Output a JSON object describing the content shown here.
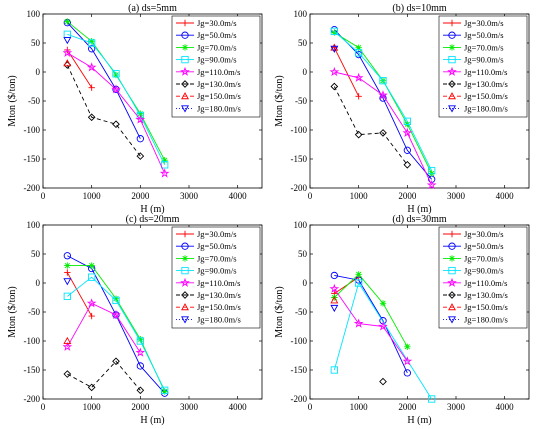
{
  "chart_data": [
    {
      "type": "line",
      "title": "(a) ds=5mm",
      "xlabel": "H (m)",
      "ylabel": "Mton ($/ton)",
      "xlim": [
        0,
        4500
      ],
      "ylim": [
        -200,
        100
      ],
      "xticks": [
        "0",
        "1000",
        "2000",
        "3000",
        "4000"
      ],
      "yticks": [
        "100",
        "50",
        "0",
        "-50",
        "-100",
        "-150",
        "-200"
      ],
      "legend_position": "top-right",
      "series": [
        {
          "name": "Jg=30.0m/s",
          "x": [
            500,
            1000
          ],
          "y": [
            38,
            -27
          ]
        },
        {
          "name": "Jg=50.0m/s",
          "x": [
            500,
            1000,
            1500,
            2000
          ],
          "y": [
            85,
            40,
            -30,
            -115
          ]
        },
        {
          "name": "Jg=70.0m/s",
          "x": [
            500,
            1000,
            1500,
            2000,
            2500
          ],
          "y": [
            87,
            53,
            -5,
            -72,
            -152
          ]
        },
        {
          "name": "Jg=90.0m/s",
          "x": [
            500,
            1000,
            1500,
            2000,
            2500
          ],
          "y": [
            65,
            50,
            -3,
            -75,
            -160
          ]
        },
        {
          "name": "Jg=110.0m/s",
          "x": [
            500,
            1000,
            1500,
            2000,
            2500
          ],
          "y": [
            33,
            8,
            -30,
            -82,
            -175
          ]
        },
        {
          "name": "Jg=130.0m/s",
          "x": [
            500,
            1000,
            1500,
            2000
          ],
          "y": [
            12,
            -78,
            -90,
            -145
          ]
        },
        {
          "name": "Jg=150.0m/s",
          "x": [
            500
          ],
          "y": [
            15
          ]
        },
        {
          "name": "Jg=180.0m/s",
          "x": [
            500
          ],
          "y": [
            55
          ]
        }
      ]
    },
    {
      "type": "line",
      "title": "(b) ds=10mm",
      "xlabel": "H (m)",
      "ylabel": "Mton ($/ton)",
      "xlim": [
        0,
        4500
      ],
      "ylim": [
        -200,
        100
      ],
      "xticks": [
        "0",
        "1000",
        "2000",
        "3000",
        "4000"
      ],
      "yticks": [
        "100",
        "50",
        "0",
        "-50",
        "-100",
        "-150",
        "-200"
      ],
      "legend_position": "top-right",
      "series": [
        {
          "name": "Jg=30.0m/s",
          "x": [
            500,
            1000
          ],
          "y": [
            42,
            -42
          ]
        },
        {
          "name": "Jg=50.0m/s",
          "x": [
            500,
            1000,
            1500,
            2000,
            2500
          ],
          "y": [
            73,
            30,
            -45,
            -135,
            -185
          ]
        },
        {
          "name": "Jg=70.0m/s",
          "x": [
            500,
            1000,
            1500,
            2000,
            2500
          ],
          "y": [
            68,
            42,
            -15,
            -90,
            -175
          ]
        },
        {
          "name": "Jg=90.0m/s",
          "x": [
            500,
            1000,
            1500,
            2000,
            2500
          ],
          "y": [
            70,
            33,
            -15,
            -85,
            -170
          ]
        },
        {
          "name": "Jg=110.0m/s",
          "x": [
            500,
            1000,
            1500,
            2000,
            2500
          ],
          "y": [
            0,
            -10,
            -40,
            -105,
            -195
          ]
        },
        {
          "name": "Jg=130.0m/s",
          "x": [
            500,
            1000,
            1500,
            2000
          ],
          "y": [
            -25,
            -108,
            -105,
            -160
          ]
        },
        {
          "name": "Jg=150.0m/s",
          "x": [
            500
          ],
          "y": [
            42
          ]
        },
        {
          "name": "Jg=180.0m/s",
          "x": [
            500
          ],
          "y": [
            40
          ]
        }
      ]
    },
    {
      "type": "line",
      "title": "(c) ds=20mm",
      "xlabel": "H (m)",
      "ylabel": "Mton ($/ton)",
      "xlim": [
        0,
        4500
      ],
      "ylim": [
        -200,
        100
      ],
      "xticks": [
        "0",
        "1000",
        "2000",
        "3000",
        "4000"
      ],
      "yticks": [
        "100",
        "50",
        "0",
        "-50",
        "-100",
        "-150",
        "-200"
      ],
      "legend_position": "top-right",
      "series": [
        {
          "name": "Jg=30.0m/s",
          "x": [
            500,
            1000
          ],
          "y": [
            18,
            -57
          ]
        },
        {
          "name": "Jg=50.0m/s",
          "x": [
            500,
            1000,
            1500,
            2000,
            2500
          ],
          "y": [
            47,
            25,
            -55,
            -143,
            -190
          ]
        },
        {
          "name": "Jg=70.0m/s",
          "x": [
            500,
            1000,
            1500,
            2000,
            2500
          ],
          "y": [
            30,
            30,
            -27,
            -97,
            -187
          ]
        },
        {
          "name": "Jg=90.0m/s",
          "x": [
            500,
            1000,
            1500,
            2000,
            2500
          ],
          "y": [
            -23,
            10,
            -30,
            -100,
            -185
          ]
        },
        {
          "name": "Jg=110.0m/s",
          "x": [
            500,
            1000,
            1500,
            2000
          ],
          "y": [
            -110,
            -35,
            -55,
            -120
          ]
        },
        {
          "name": "Jg=130.0m/s",
          "x": [
            500,
            1000,
            1500,
            2000
          ],
          "y": [
            -157,
            -180,
            -135,
            -185
          ]
        },
        {
          "name": "Jg=150.0m/s",
          "x": [
            500
          ],
          "y": [
            -100
          ]
        },
        {
          "name": "Jg=180.0m/s",
          "x": [
            500
          ],
          "y": [
            3
          ]
        }
      ]
    },
    {
      "type": "line",
      "title": "(d) ds=30mm",
      "xlabel": "H (m)",
      "ylabel": "Mton ($/ton)",
      "xlim": [
        0,
        4500
      ],
      "ylim": [
        -200,
        100
      ],
      "xticks": [
        "0",
        "1000",
        "2000",
        "3000",
        "4000"
      ],
      "yticks": [
        "100",
        "50",
        "0",
        "-50",
        "-100",
        "-150",
        "-200"
      ],
      "legend_position": "top-right",
      "series": [
        {
          "name": "Jg=30.0m/s",
          "x": [
            500,
            1000
          ],
          "y": [
            -18,
            10
          ]
        },
        {
          "name": "Jg=50.0m/s",
          "x": [
            500,
            1000,
            1500,
            2000
          ],
          "y": [
            13,
            5,
            -65,
            -155
          ]
        },
        {
          "name": "Jg=70.0m/s",
          "x": [
            500,
            1000,
            1500,
            2000
          ],
          "y": [
            -25,
            15,
            -35,
            -110
          ]
        },
        {
          "name": "Jg=90.0m/s",
          "x": [
            500,
            1000,
            2500
          ],
          "y": [
            -150,
            0,
            -200
          ]
        },
        {
          "name": "Jg=110.0m/s",
          "x": [
            500,
            1000,
            1500,
            2000
          ],
          "y": [
            -10,
            -70,
            -75,
            -135
          ]
        },
        {
          "name": "Jg=130.0m/s",
          "x": [
            1500
          ],
          "y": [
            -170
          ]
        },
        {
          "name": "Jg=150.0m/s",
          "x": [
            500
          ],
          "y": [
            -30
          ]
        },
        {
          "name": "Jg=180.0m/s",
          "x": [
            500
          ],
          "y": [
            -43
          ]
        }
      ]
    }
  ],
  "series_styles": [
    {
      "color": "#ff0000",
      "marker": "plus",
      "dash": ""
    },
    {
      "color": "#0000ff",
      "marker": "circle",
      "dash": ""
    },
    {
      "color": "#00ee00",
      "marker": "asterisk",
      "dash": ""
    },
    {
      "color": "#00e5ff",
      "marker": "square",
      "dash": ""
    },
    {
      "color": "#ff00ff",
      "marker": "star",
      "dash": ""
    },
    {
      "color": "#000000",
      "marker": "diamond",
      "dash": "4,3"
    },
    {
      "color": "#ff0000",
      "marker": "triangle-up",
      "dash": "4,3"
    },
    {
      "color": "#0000ff",
      "marker": "triangle-down",
      "dash": "1,2"
    }
  ]
}
